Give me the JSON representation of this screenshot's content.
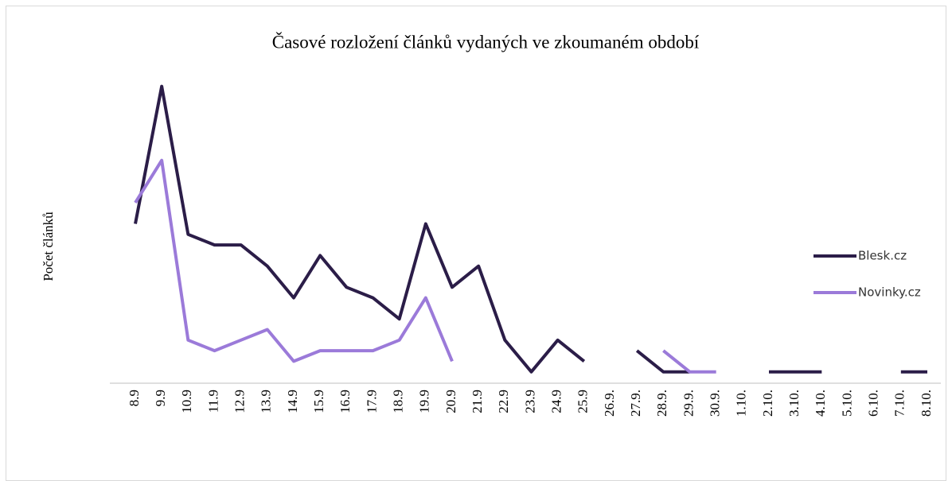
{
  "chart_data": {
    "type": "line",
    "title": "Časové rozložení článků vydaných ve zkoumaném období",
    "y_label": "Počet článků",
    "categories": [
      "8.9",
      "9.9",
      "10.9",
      "11.9",
      "12.9",
      "13.9",
      "14.9",
      "15.9",
      "16.9",
      "17.9",
      "18.9",
      "19.9",
      "20.9",
      "21.9",
      "22.9",
      "23.9",
      "24.9",
      "25.9",
      "26.9.",
      "27.9.",
      "28.9.",
      "29.9.",
      "30.9.",
      "1.10.",
      "2.10.",
      "3.10.",
      "4.10.",
      "5.10.",
      "6.10.",
      "7.10.",
      "8.10."
    ],
    "series": [
      {
        "name": "Blesk.cz",
        "color": "#2b1d48",
        "values": [
          15,
          28,
          14,
          13,
          13,
          11,
          8,
          12,
          9,
          8,
          6,
          15,
          9,
          11,
          4,
          1,
          4,
          2,
          null,
          3,
          1,
          1,
          null,
          null,
          1,
          1,
          1,
          null,
          null,
          1,
          1
        ]
      },
      {
        "name": "Novinky.cz",
        "color": "#9b7ad9",
        "values": [
          17,
          21,
          4,
          3,
          4,
          5,
          2,
          3,
          3,
          3,
          4,
          8,
          2,
          null,
          null,
          null,
          null,
          null,
          null,
          null,
          3,
          1,
          1,
          null,
          null,
          null,
          null,
          null,
          null,
          null,
          null
        ]
      }
    ],
    "ylim": [
      0,
      30
    ],
    "legend": "right"
  }
}
